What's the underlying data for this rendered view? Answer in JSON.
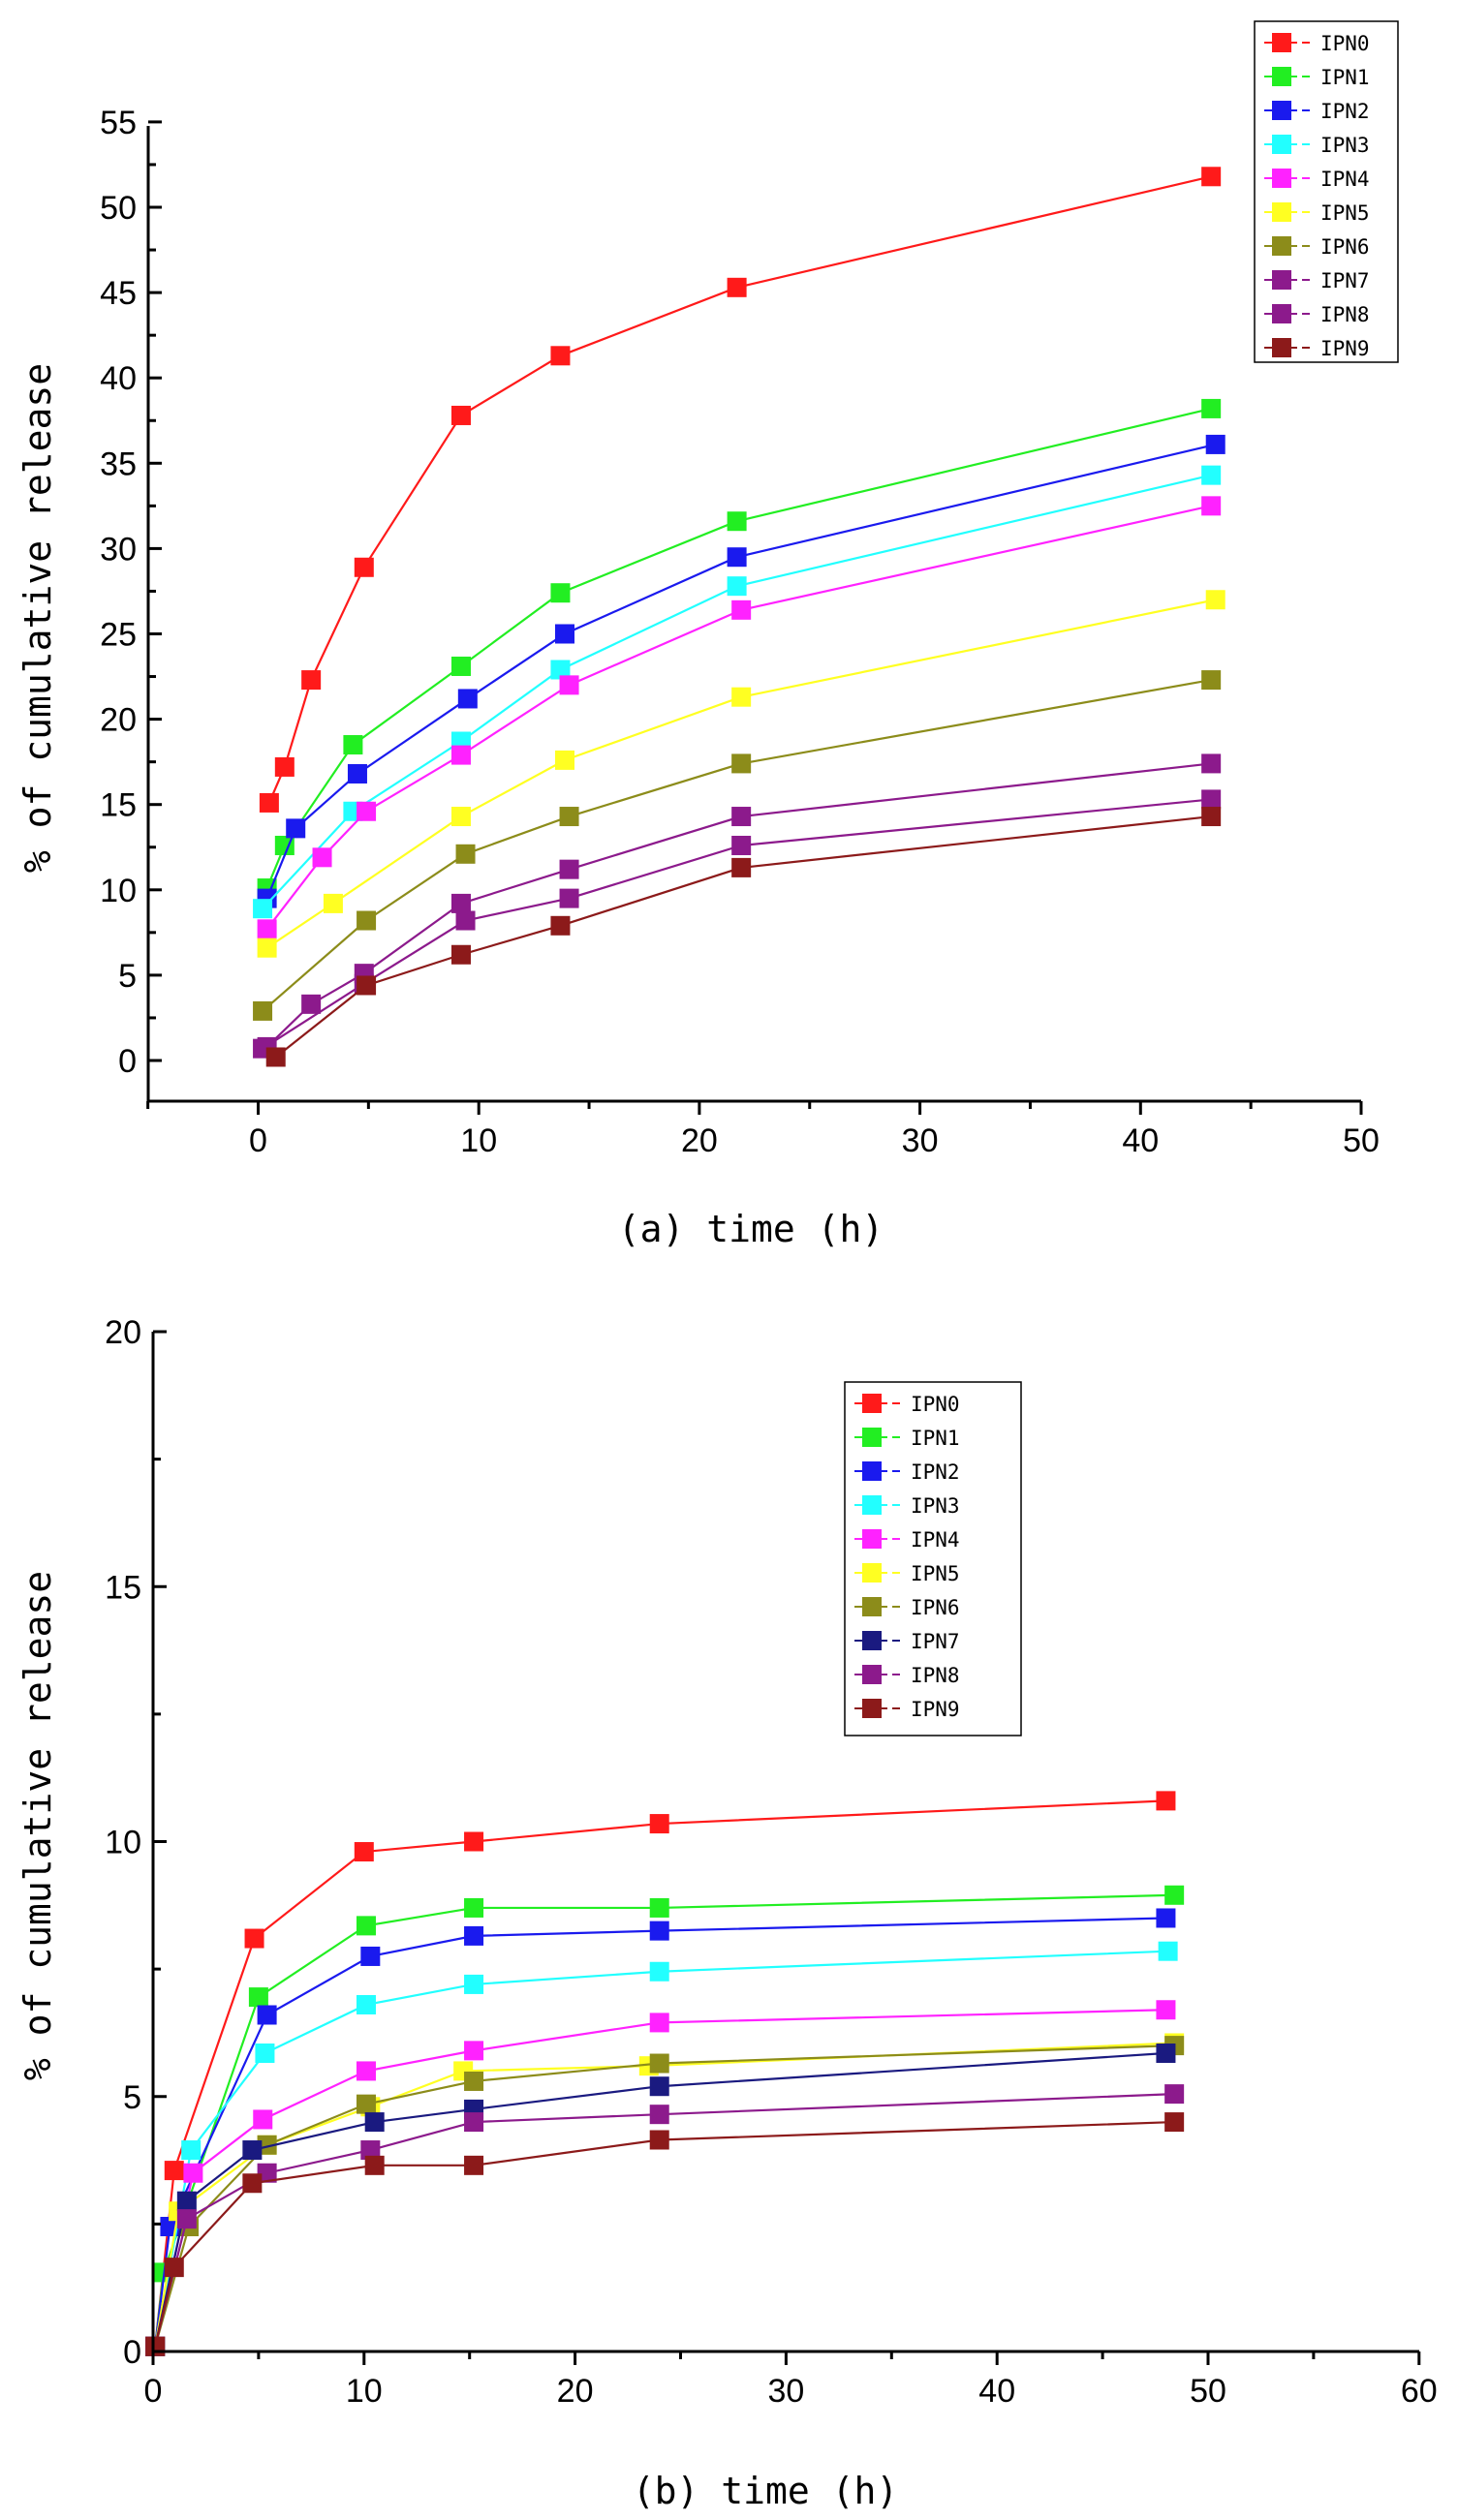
{
  "chart_data": [
    {
      "id": "a",
      "type": "line",
      "xlabel": "(a)  time (h)",
      "ylabel": "% of cumulative release",
      "xlim": [
        -5,
        50
      ],
      "ylim": [
        -2.5,
        57
      ],
      "xticks": [
        "0",
        "10",
        "20",
        "30",
        "40",
        "50"
      ],
      "yticks": [
        "0",
        "5",
        "10",
        "15",
        "20",
        "25",
        "30",
        "35",
        "40",
        "45",
        "50",
        "55"
      ],
      "legend_position": "top-right",
      "grid": false,
      "marker": "square",
      "series": [
        {
          "name": "IPN0",
          "color": "#ff1a1a",
          "points": [
            [
              0.5,
              15.1
            ],
            [
              1.2,
              17.2
            ],
            [
              2.4,
              22.3
            ],
            [
              4.8,
              28.9
            ],
            [
              9.2,
              37.8
            ],
            [
              13.7,
              41.3
            ],
            [
              21.7,
              45.3
            ],
            [
              43.2,
              51.8
            ]
          ]
        },
        {
          "name": "IPN1",
          "color": "#22ee22",
          "points": [
            [
              0.4,
              10.1
            ],
            [
              1.2,
              12.6
            ],
            [
              4.3,
              18.5
            ],
            [
              9.2,
              23.1
            ],
            [
              13.7,
              27.4
            ],
            [
              21.7,
              31.6
            ],
            [
              43.2,
              38.2
            ]
          ]
        },
        {
          "name": "IPN2",
          "color": "#1a1aee",
          "points": [
            [
              0.4,
              9.5
            ],
            [
              1.7,
              13.6
            ],
            [
              4.5,
              16.8
            ],
            [
              9.5,
              21.2
            ],
            [
              13.9,
              25.0
            ],
            [
              21.7,
              29.5
            ],
            [
              43.4,
              36.1
            ]
          ]
        },
        {
          "name": "IPN3",
          "color": "#22ffff",
          "points": [
            [
              0.2,
              8.9
            ],
            [
              4.3,
              14.6
            ],
            [
              9.2,
              18.7
            ],
            [
              13.7,
              22.9
            ],
            [
              21.7,
              27.8
            ],
            [
              43.2,
              34.3
            ]
          ]
        },
        {
          "name": "IPN4",
          "color": "#ff22ff",
          "points": [
            [
              0.4,
              7.7
            ],
            [
              2.9,
              11.9
            ],
            [
              4.9,
              14.6
            ],
            [
              9.2,
              17.9
            ],
            [
              14.1,
              22.0
            ],
            [
              21.9,
              26.4
            ],
            [
              43.2,
              32.5
            ]
          ]
        },
        {
          "name": "IPN5",
          "color": "#ffff22",
          "points": [
            [
              0.4,
              6.6
            ],
            [
              3.4,
              9.2
            ],
            [
              9.2,
              14.3
            ],
            [
              13.9,
              17.6
            ],
            [
              21.9,
              21.3
            ],
            [
              43.4,
              27.0
            ]
          ]
        },
        {
          "name": "IPN6",
          "color": "#8c8c1a",
          "points": [
            [
              0.2,
              2.9
            ],
            [
              4.9,
              8.2
            ],
            [
              9.4,
              12.1
            ],
            [
              14.1,
              14.3
            ],
            [
              21.9,
              17.4
            ],
            [
              43.2,
              22.3
            ]
          ]
        },
        {
          "name": "IPN7",
          "color": "#8c1a8c",
          "points": [
            [
              0.4,
              0.8
            ],
            [
              2.4,
              3.3
            ],
            [
              4.8,
              5.1
            ],
            [
              9.2,
              9.2
            ],
            [
              14.1,
              11.2
            ],
            [
              21.9,
              14.3
            ],
            [
              43.2,
              17.4
            ]
          ]
        },
        {
          "name": "IPN8",
          "color": "#8c1a8c",
          "points": [
            [
              0.2,
              0.7
            ],
            [
              4.8,
              4.5
            ],
            [
              9.4,
              8.2
            ],
            [
              14.1,
              9.5
            ],
            [
              21.9,
              12.6
            ],
            [
              43.2,
              15.3
            ]
          ]
        },
        {
          "name": "IPN9",
          "color": "#8c1a1a",
          "points": [
            [
              0.8,
              0.2
            ],
            [
              4.9,
              4.4
            ],
            [
              9.2,
              6.2
            ],
            [
              13.7,
              7.9
            ],
            [
              21.9,
              11.3
            ],
            [
              43.2,
              14.3
            ]
          ]
        }
      ]
    },
    {
      "id": "b",
      "type": "line",
      "xlabel": "(b)  time (h)",
      "ylabel": "% of cumulative release",
      "xlim": [
        0,
        60
      ],
      "ylim": [
        0,
        20
      ],
      "xticks": [
        "0",
        "10",
        "20",
        "30",
        "40",
        "50",
        "60"
      ],
      "yticks": [
        "0",
        "5",
        "10",
        "15",
        "20"
      ],
      "legend_position": "top-center",
      "grid": false,
      "marker": "square",
      "series": [
        {
          "name": "IPN0",
          "color": "#ff1a1a",
          "points": [
            [
              0.1,
              0.1
            ],
            [
              1.0,
              3.55
            ],
            [
              4.8,
              8.1
            ],
            [
              10.0,
              9.8
            ],
            [
              15.2,
              10.0
            ],
            [
              24.0,
              10.35
            ],
            [
              48.0,
              10.8
            ]
          ]
        },
        {
          "name": "IPN1",
          "color": "#22ee22",
          "points": [
            [
              0.1,
              0.1
            ],
            [
              0.5,
              1.55
            ],
            [
              5.0,
              6.95
            ],
            [
              10.1,
              8.35
            ],
            [
              15.2,
              8.7
            ],
            [
              24.0,
              8.7
            ],
            [
              48.4,
              8.95
            ]
          ]
        },
        {
          "name": "IPN2",
          "color": "#1a1aee",
          "points": [
            [
              0.1,
              0.1
            ],
            [
              0.8,
              2.45
            ],
            [
              5.4,
              6.6
            ],
            [
              10.3,
              7.75
            ],
            [
              15.2,
              8.15
            ],
            [
              24.0,
              8.25
            ],
            [
              48.0,
              8.5
            ]
          ]
        },
        {
          "name": "IPN3",
          "color": "#22ffff",
          "points": [
            [
              0.1,
              0.1
            ],
            [
              1.8,
              3.95
            ],
            [
              5.3,
              5.85
            ],
            [
              10.1,
              6.8
            ],
            [
              15.2,
              7.2
            ],
            [
              24.0,
              7.45
            ],
            [
              48.1,
              7.85
            ]
          ]
        },
        {
          "name": "IPN4",
          "color": "#ff22ff",
          "points": [
            [
              0.1,
              0.1
            ],
            [
              1.9,
              3.5
            ],
            [
              5.2,
              4.55
            ],
            [
              10.1,
              5.5
            ],
            [
              15.2,
              5.9
            ],
            [
              24.0,
              6.45
            ],
            [
              48.0,
              6.7
            ]
          ]
        },
        {
          "name": "IPN5",
          "color": "#ffff22",
          "points": [
            [
              0.1,
              0.1
            ],
            [
              1.2,
              2.75
            ],
            [
              5.4,
              4.05
            ],
            [
              10.3,
              4.8
            ],
            [
              14.7,
              5.5
            ],
            [
              23.5,
              5.6
            ],
            [
              48.4,
              6.05
            ]
          ]
        },
        {
          "name": "IPN6",
          "color": "#8c8c1a",
          "points": [
            [
              0.1,
              0.1
            ],
            [
              1.7,
              2.45
            ],
            [
              5.4,
              4.05
            ],
            [
              10.1,
              4.85
            ],
            [
              15.2,
              5.3
            ],
            [
              24.0,
              5.65
            ],
            [
              48.4,
              6.0
            ]
          ]
        },
        {
          "name": "IPN7",
          "color": "#1a1a80",
          "points": [
            [
              0.1,
              0.1
            ],
            [
              1.6,
              2.95
            ],
            [
              4.7,
              3.95
            ],
            [
              10.5,
              4.5
            ],
            [
              15.2,
              4.75
            ],
            [
              24.0,
              5.2
            ],
            [
              48.0,
              5.85
            ]
          ]
        },
        {
          "name": "IPN8",
          "color": "#8c1a8c",
          "points": [
            [
              0.1,
              0.1
            ],
            [
              1.6,
              2.6
            ],
            [
              5.4,
              3.5
            ],
            [
              10.3,
              3.95
            ],
            [
              15.2,
              4.5
            ],
            [
              24.0,
              4.65
            ],
            [
              48.4,
              5.05
            ]
          ]
        },
        {
          "name": "IPN9",
          "color": "#8c1a1a",
          "points": [
            [
              0.1,
              0.1
            ],
            [
              1.0,
              1.65
            ],
            [
              4.7,
              3.3
            ],
            [
              10.5,
              3.65
            ],
            [
              15.2,
              3.65
            ],
            [
              24.0,
              4.15
            ],
            [
              48.4,
              4.5
            ]
          ]
        }
      ]
    }
  ]
}
